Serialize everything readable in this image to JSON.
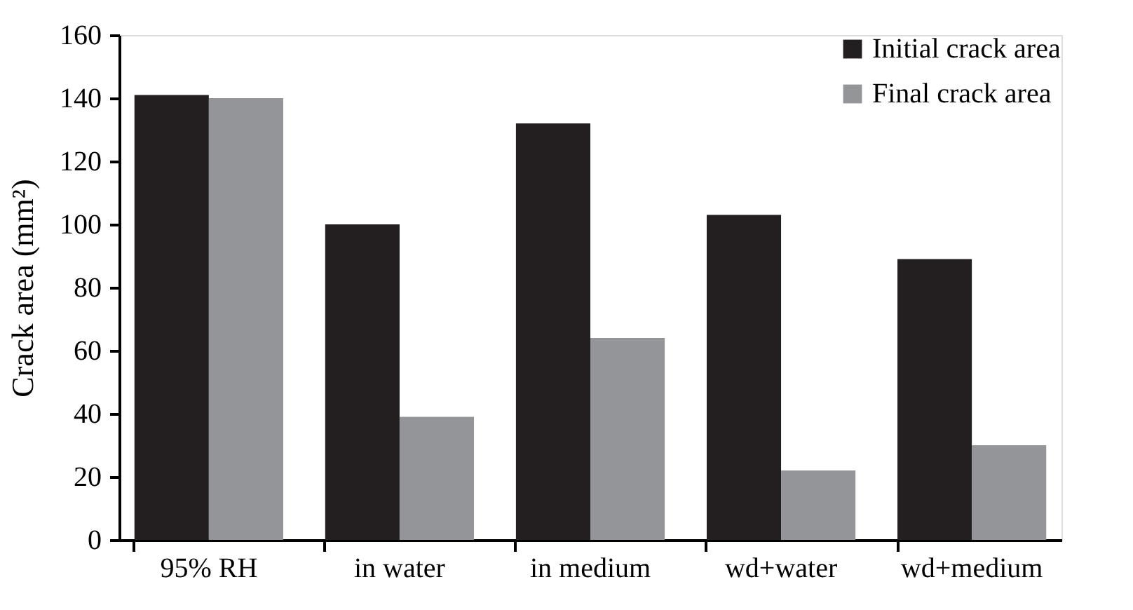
{
  "chart_data": {
    "type": "bar",
    "ylabel": "Crack area (mm²)",
    "categories": [
      "95% RH",
      "in water",
      "in medium",
      "wd+water",
      "wd+medium"
    ],
    "series": [
      {
        "name": "Initial crack area",
        "color": "#231f20",
        "values": [
          141,
          100,
          132,
          103,
          89
        ]
      },
      {
        "name": "Final crack area",
        "color": "#939598",
        "values": [
          140,
          39,
          64,
          22,
          30
        ]
      }
    ],
    "ylim": [
      0,
      160
    ],
    "yticks": [
      0,
      20,
      40,
      60,
      80,
      100,
      120,
      140,
      160
    ],
    "grid": false,
    "legend": "top right"
  }
}
